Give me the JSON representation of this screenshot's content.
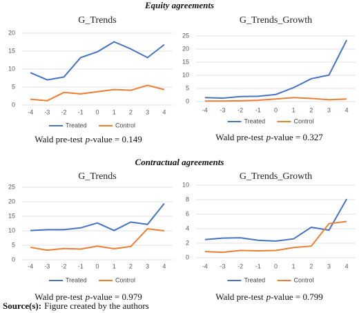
{
  "sections": [
    {
      "title": "Equity agreements"
    },
    {
      "title": "Contractual agreements"
    }
  ],
  "source": {
    "label": "Source(s):",
    "text": "Figure created by the authors"
  },
  "chart_data": [
    {
      "type": "line",
      "title": "G_Trends",
      "categories": [
        "-4",
        "-3",
        "-2",
        "-1",
        "0",
        "1",
        "2",
        "3",
        "4"
      ],
      "series": [
        {
          "name": "Treated",
          "color": "#4472c4",
          "values": [
            9,
            7,
            7.8,
            13.2,
            14.8,
            17.6,
            15.6,
            13.2,
            16.8
          ]
        },
        {
          "name": "Control",
          "color": "#ed7d31",
          "values": [
            1.6,
            1.2,
            3.5,
            3.1,
            3.7,
            4.3,
            4.1,
            5.5,
            4.3
          ]
        }
      ],
      "ylim": [
        0,
        20
      ],
      "yticks": [
        0,
        5,
        10,
        15,
        20
      ],
      "grid": true,
      "annotation": [
        "Wald pre-test",
        "p",
        "-value = 0.149"
      ]
    },
    {
      "type": "line",
      "title": "G_Trends_Growth",
      "categories": [
        "-4",
        "-3",
        "-2",
        "-1",
        "0",
        "1",
        "2",
        "3",
        "4"
      ],
      "series": [
        {
          "name": "Treated",
          "color": "#4472c4",
          "values": [
            1.5,
            1.3,
            1.9,
            2.0,
            2.7,
            5.3,
            8.7,
            10.1,
            23.4
          ]
        },
        {
          "name": "Control",
          "color": "#ed7d31",
          "values": [
            0.2,
            0.2,
            0.3,
            0.5,
            1.0,
            1.5,
            1.2,
            0.7,
            1.0
          ]
        }
      ],
      "ylim": [
        0,
        25
      ],
      "yticks": [
        0,
        5,
        10,
        15,
        20,
        25
      ],
      "grid": true,
      "annotation": [
        "Wald pre-test",
        "p",
        "-value = 0.327"
      ]
    },
    {
      "type": "line",
      "title": "G_Trends",
      "categories": [
        "-4",
        "-3",
        "-2",
        "-1",
        "0",
        "1",
        "2",
        "3",
        "4"
      ],
      "series": [
        {
          "name": "Treated",
          "color": "#4472c4",
          "values": [
            10.1,
            10.4,
            10.4,
            11.0,
            12.7,
            10.1,
            13.0,
            12.2,
            19.4
          ]
        },
        {
          "name": "Control",
          "color": "#ed7d31",
          "values": [
            4.3,
            3.3,
            3.9,
            3.7,
            4.7,
            3.8,
            4.6,
            10.7,
            10.0
          ]
        }
      ],
      "ylim": [
        0,
        25
      ],
      "yticks": [
        0,
        5,
        10,
        15,
        20,
        25
      ],
      "grid": true,
      "annotation": [
        "Wald pre-test",
        "p",
        "-value = 0.979"
      ]
    },
    {
      "type": "line",
      "title": "G_Trends_Growth",
      "categories": [
        "-4",
        "-3",
        "-2",
        "-1",
        "0",
        "1",
        "2",
        "3",
        "4"
      ],
      "series": [
        {
          "name": "Treated",
          "color": "#4472c4",
          "values": [
            2.5,
            2.7,
            2.75,
            2.4,
            2.3,
            2.6,
            4.2,
            3.8,
            8.1
          ]
        },
        {
          "name": "Control",
          "color": "#ed7d31",
          "values": [
            0.85,
            0.75,
            1.0,
            0.95,
            1.0,
            1.4,
            1.6,
            4.7,
            5.0
          ]
        }
      ],
      "ylim": [
        0,
        10
      ],
      "yticks": [
        0,
        2,
        4,
        6,
        8,
        10
      ],
      "grid": true,
      "annotation": [
        "Wald pre-test",
        "p",
        "-value = 0.799"
      ]
    }
  ]
}
